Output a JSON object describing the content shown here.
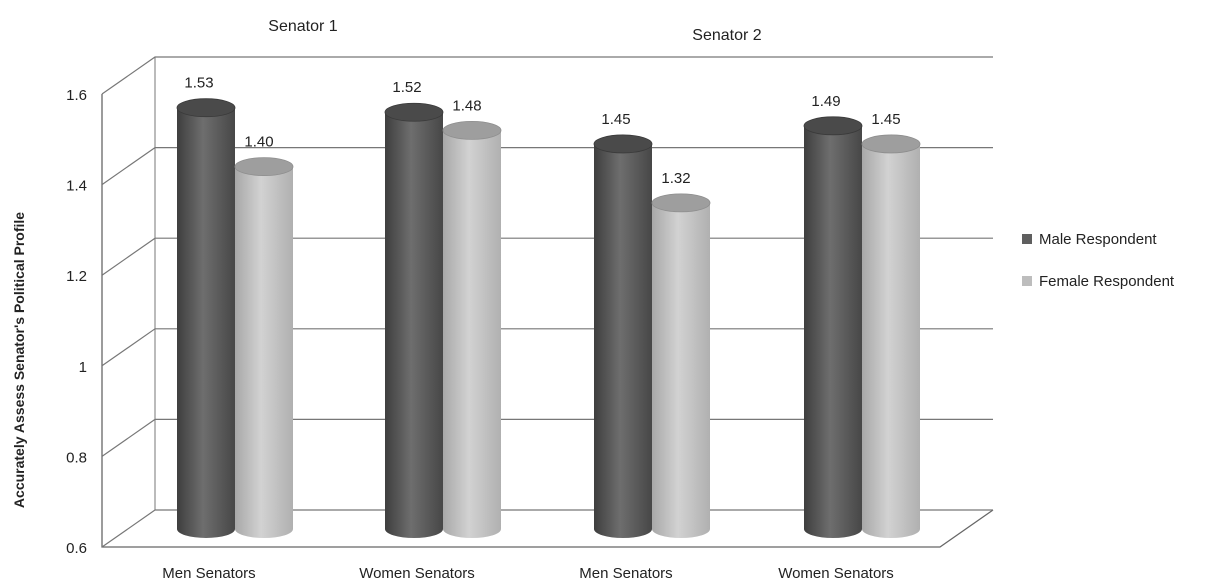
{
  "chart_data": {
    "type": "bar",
    "ylabel": "Accurately Assess Senator's Political Profile",
    "ylim": [
      0.6,
      1.6
    ],
    "yticks": [
      "0.6",
      "0.8",
      "1",
      "1.2",
      "1.4",
      "1.6"
    ],
    "grid": true,
    "three_d": true,
    "legend_position": "right",
    "groups": [
      {
        "label": "Senator 1",
        "categories": [
          "Men Senators",
          "Women Senators"
        ]
      },
      {
        "label": "Senator 2",
        "categories": [
          "Men Senators",
          "Women Senators"
        ]
      }
    ],
    "categories": [
      "Men Senators",
      "Women Senators",
      "Men Senators",
      "Women Senators"
    ],
    "series": [
      {
        "name": "Male Respondent",
        "color": "#5f5f5f",
        "values": [
          1.53,
          1.52,
          1.45,
          1.49
        ],
        "labels": [
          "1.53",
          "1.52",
          "1.45",
          "1.49"
        ]
      },
      {
        "name": "Female Respondent",
        "color": "#bdbdbd",
        "values": [
          1.4,
          1.48,
          1.32,
          1.45
        ],
        "labels": [
          "1.40",
          "1.48",
          "1.32",
          "1.45"
        ]
      }
    ]
  }
}
